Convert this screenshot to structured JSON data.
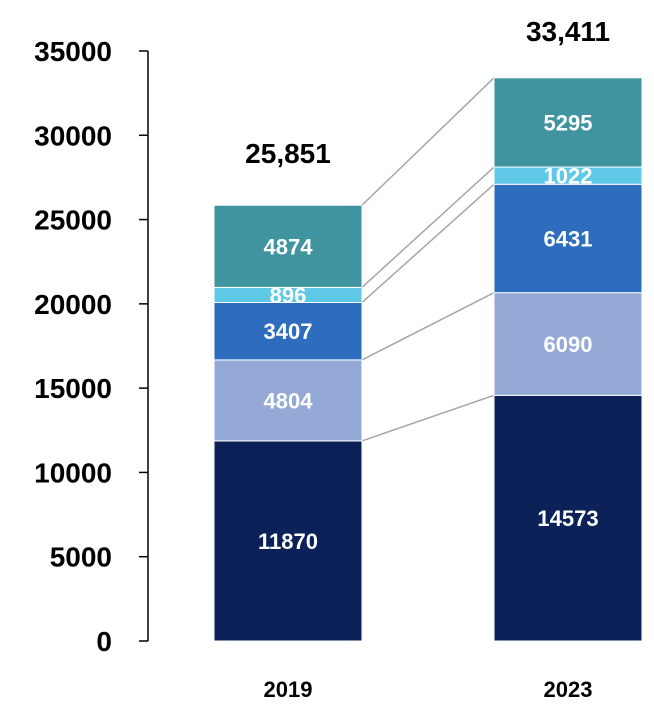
{
  "chart_data": {
    "type": "bar",
    "stacked": true,
    "categories": [
      "2019",
      "2023"
    ],
    "series": [
      {
        "values": [
          11870,
          14573
        ],
        "color": "#0b2158"
      },
      {
        "values": [
          4804,
          6090
        ],
        "color": "#94a9d6"
      },
      {
        "values": [
          3407,
          6431
        ],
        "color": "#2e6dbd"
      },
      {
        "values": [
          896,
          1022
        ],
        "color": "#5ec8e6"
      },
      {
        "values": [
          4874,
          5295
        ],
        "color": "#3f94a0"
      }
    ],
    "data_labels": [
      [
        "11870",
        "4804",
        "3407",
        "896",
        "4874"
      ],
      [
        "14573",
        "6090",
        "6431",
        "1022",
        "5295"
      ]
    ],
    "totals": [
      25851,
      33411
    ],
    "total_labels": [
      "25,851",
      "33,411"
    ],
    "ylim": [
      0,
      35000
    ],
    "yticks": [
      0,
      5000,
      10000,
      15000,
      20000,
      25000,
      30000,
      35000
    ],
    "ytick_labels": [
      "0",
      "5000",
      "10000",
      "15000",
      "20000",
      "25000",
      "30000",
      "35000"
    ],
    "connector_lines": true,
    "grid": false,
    "legend": "none",
    "title": "",
    "xlabel": "",
    "ylabel": ""
  }
}
